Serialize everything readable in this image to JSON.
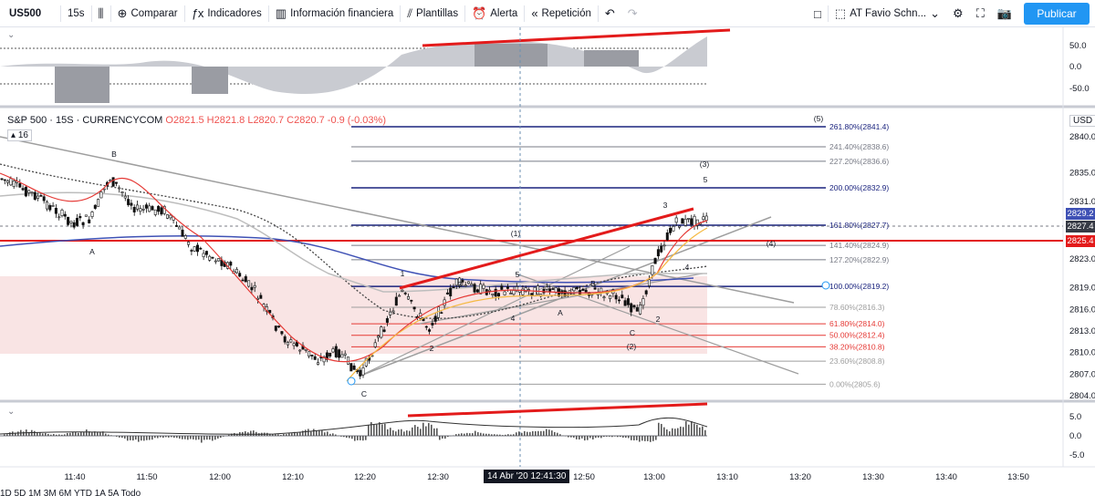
{
  "toolbar": {
    "symbol": "US500",
    "interval": "15s",
    "compare": "Comparar",
    "indicators": "Indicadores",
    "financials": "Información financiera",
    "templates": "Plantillas",
    "alert": "Alerta",
    "replay": "Repetición",
    "layout_name": "AT Favio Schn...",
    "publish": "Publicar"
  },
  "legend": {
    "title": "S&P 500 · 15S · CURRENCYCOM",
    "ohlc": "O2821.5 H2821.8 L2820.7 C2820.7 -0.9 (-0.03%)",
    "badge": "16"
  },
  "currency": "USD",
  "price_axis": [
    "2840.0",
    "2835.0",
    "2831.0",
    "2827.4",
    "2823.0",
    "2819.0",
    "2816.0",
    "2813.0",
    "2810.0",
    "2807.0",
    "2804.0"
  ],
  "top_axis": [
    "50.0",
    "0.0",
    "-50.0"
  ],
  "bottom_axis": [
    "5.0",
    "0.0",
    "-5.0"
  ],
  "price_tags": {
    "current": "2829.2",
    "crosshair": "2827.4",
    "red_line": "2825.4"
  },
  "time_axis": [
    "11:40",
    "11:50",
    "12:00",
    "12:10",
    "12:20",
    "12:30",
    "12:50",
    "13:00",
    "13:10",
    "13:20",
    "13:30",
    "13:40",
    "13:50"
  ],
  "time_badge": "14 Abr '20  12:41:30",
  "fib_levels": [
    {
      "label": "261.80%(2841.4)",
      "color": "#1a237e"
    },
    {
      "label": "241.40%(2838.6)",
      "color": "#787b86"
    },
    {
      "label": "227.20%(2836.6)",
      "color": "#787b86"
    },
    {
      "label": "200.00%(2832.9)",
      "color": "#1a237e"
    },
    {
      "label": "161.80%(2827.7)",
      "color": "#1a237e"
    },
    {
      "label": "141.40%(2824.9)",
      "color": "#787b86"
    },
    {
      "label": "127.20%(2822.9)",
      "color": "#787b86"
    },
    {
      "label": "100.00%(2819.2)",
      "color": "#1a237e"
    },
    {
      "label": "78.60%(2816.3)",
      "color": "#9e9e9e"
    },
    {
      "label": "61.80%(2814.0)",
      "color": "#e53935"
    },
    {
      "label": "50.00%(2812.4)",
      "color": "#e53935"
    },
    {
      "label": "38.20%(2810.8)",
      "color": "#e53935"
    },
    {
      "label": "23.60%(2808.8)",
      "color": "#9e9e9e"
    },
    {
      "label": "0.00%(2805.6)",
      "color": "#9e9e9e"
    }
  ],
  "wave_labels": [
    "B",
    "A",
    "C",
    "1",
    "2",
    "3",
    "4",
    "5",
    "(1)",
    "A",
    "B",
    "C",
    "(2)",
    "3",
    "4",
    "5",
    "(3)",
    "(4)",
    "(5)",
    "2"
  ],
  "bottom_bar": "1D  5D  1M  3M  6M  YTD  1A  5A  Todo"
}
